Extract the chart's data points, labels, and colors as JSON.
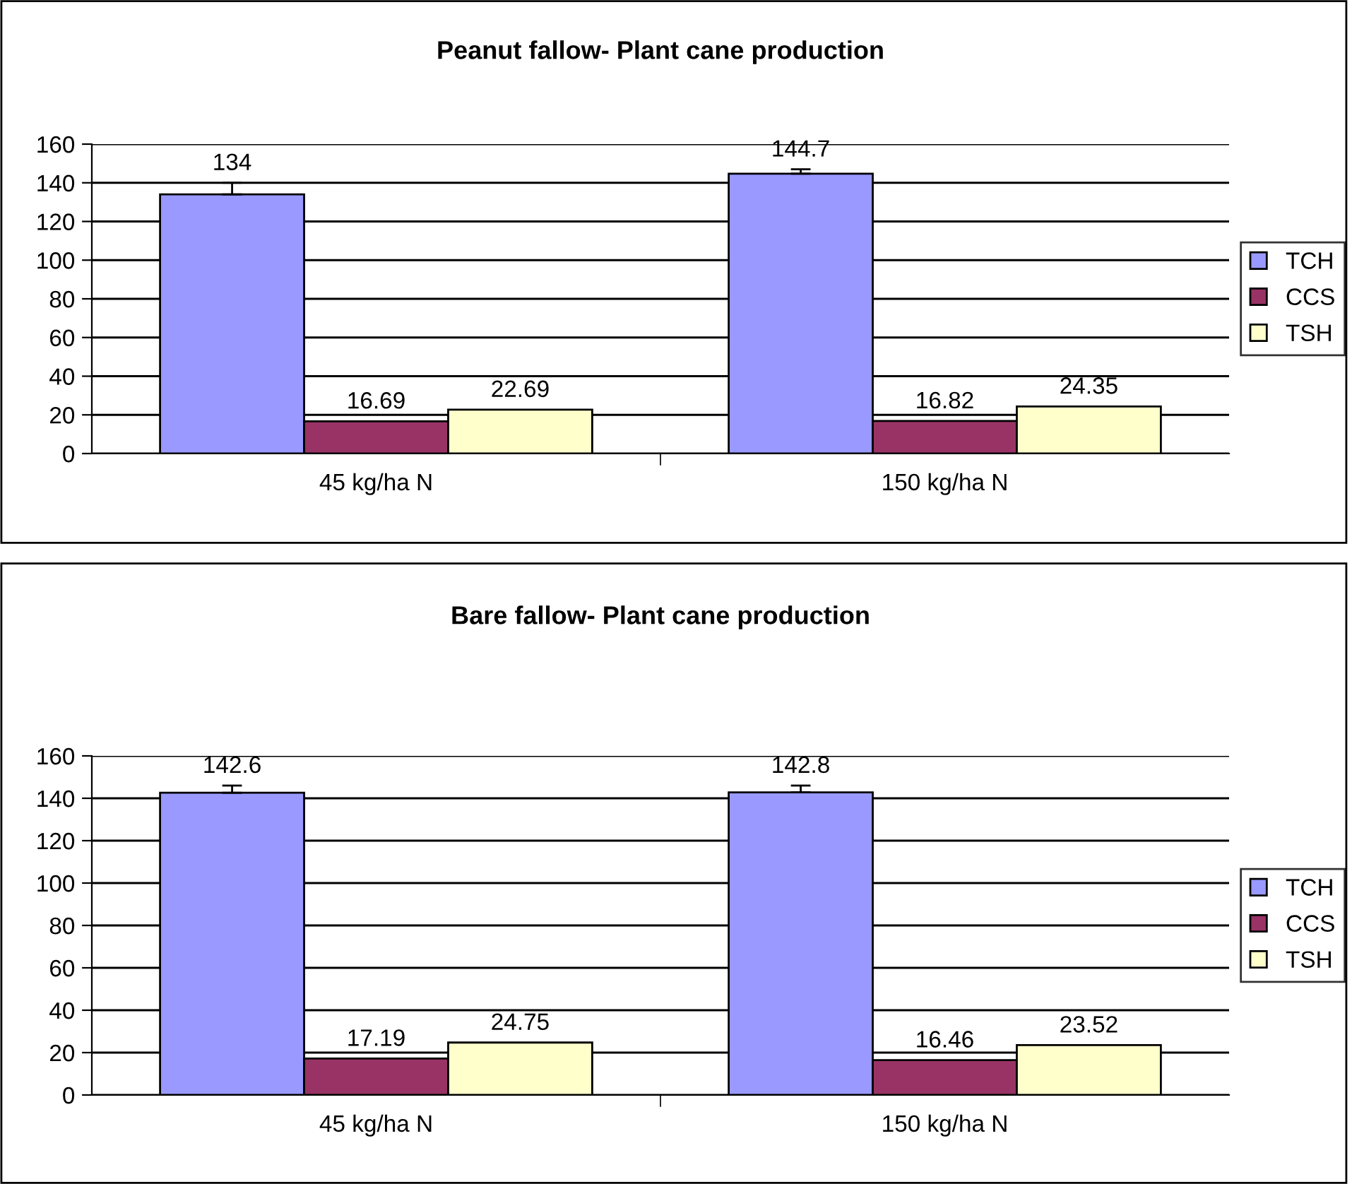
{
  "chart_data": [
    {
      "type": "bar",
      "title": "Peanut fallow- Plant cane production",
      "categories": [
        "45 kg/ha N",
        "150 kg/ha N"
      ],
      "series": [
        {
          "name": "TCH",
          "color": "#9999ff",
          "values": [
            134,
            144.7
          ],
          "errors": [
            [
              134,
              140
            ],
            [
              144.7,
              147
            ]
          ]
        },
        {
          "name": "CCS",
          "color": "#993366",
          "values": [
            16.69,
            16.82
          ]
        },
        {
          "name": "TSH",
          "color": "#ffffcc",
          "values": [
            22.69,
            24.35
          ]
        }
      ],
      "ylim": [
        0,
        160
      ],
      "yticks": [
        0,
        20,
        40,
        60,
        80,
        100,
        120,
        140,
        160
      ],
      "grid": "y",
      "legend": "right",
      "data_labels": true
    },
    {
      "type": "bar",
      "title": "Bare fallow- Plant cane production",
      "categories": [
        "45 kg/ha N",
        "150 kg/ha N"
      ],
      "series": [
        {
          "name": "TCH",
          "color": "#9999ff",
          "values": [
            142.6,
            142.8
          ],
          "errors": [
            [
              142.6,
              146
            ],
            [
              142.8,
              146
            ]
          ]
        },
        {
          "name": "CCS",
          "color": "#993366",
          "values": [
            17.19,
            16.46
          ]
        },
        {
          "name": "TSH",
          "color": "#ffffcc",
          "values": [
            24.75,
            23.52
          ]
        }
      ],
      "ylim": [
        0,
        160
      ],
      "yticks": [
        0,
        20,
        40,
        60,
        80,
        100,
        120,
        140,
        160
      ],
      "grid": "y",
      "legend": "right",
      "data_labels": true
    }
  ]
}
